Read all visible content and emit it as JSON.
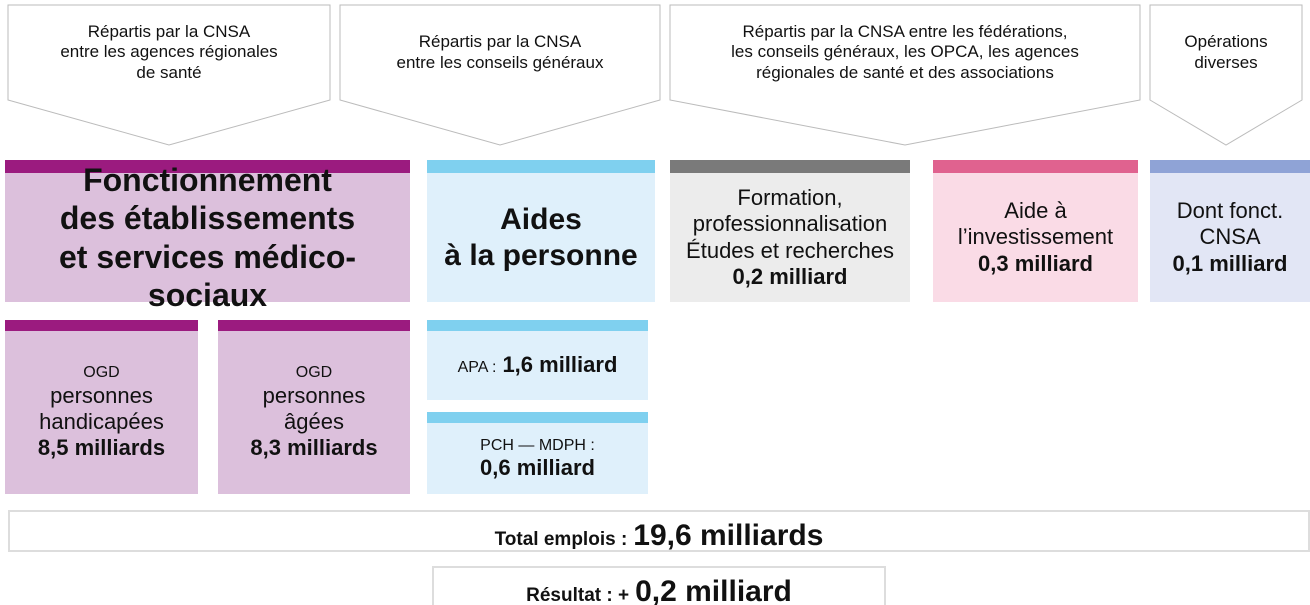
{
  "banners": [
    {
      "lines": [
        "Répartis par la CNSA",
        "entre les agences régionales",
        "de santé"
      ]
    },
    {
      "lines": [
        "Répartis par la CNSA",
        "entre les conseils généraux"
      ]
    },
    {
      "lines": [
        "Répartis par la CNSA entre les fédérations,",
        "les conseils généraux, les OPCA, les agences",
        "régionales de santé et des associations"
      ]
    },
    {
      "lines": [
        "Opérations",
        "diverses"
      ]
    }
  ],
  "categories": [
    {
      "lines": [
        "Fonctionnement",
        "des établissements",
        "et services médico-sociaux"
      ]
    },
    {
      "lines": [
        "Aides",
        "à la personne"
      ]
    },
    {
      "lines": [
        "Formation,",
        "professionnalisation",
        "Études et recherches"
      ],
      "amount": "0,2 milliard"
    },
    {
      "lines": [
        "Aide à",
        "l’investissement"
      ],
      "amount": "0,3 milliard"
    },
    {
      "lines": [
        "Dont fonct.",
        "CNSA"
      ],
      "amount": "0,1 milliard"
    }
  ],
  "sub_items": [
    {
      "label": "OGD",
      "lines": [
        "personnes",
        "handicapées"
      ],
      "amount": "8,5 milliards"
    },
    {
      "label": "OGD",
      "lines": [
        "personnes",
        "âgées"
      ],
      "amount": "8,3 milliards"
    },
    {
      "label": "APA :",
      "amount": "1,6 milliard"
    },
    {
      "label": "PCH — MDPH :",
      "amount": "0,6 milliard"
    }
  ],
  "total": {
    "label": "Total emplois :",
    "amount": "19,6 milliards"
  },
  "result": {
    "label": "Résultat : +",
    "amount": "0,2 milliard"
  }
}
